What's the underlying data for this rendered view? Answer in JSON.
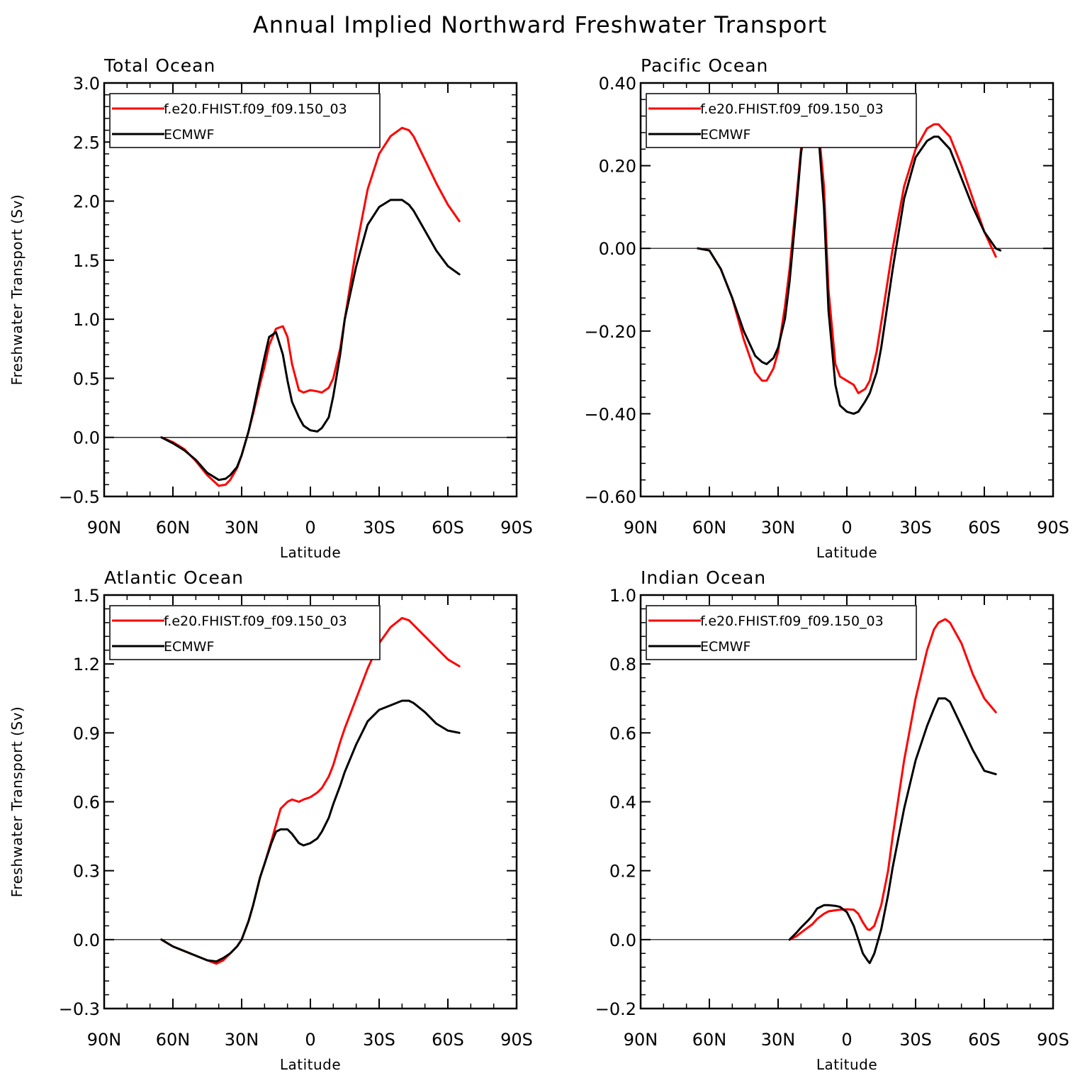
{
  "title": "Annual Implied Northward Freshwater Transport",
  "colors": {
    "model": "#ff0000",
    "obs": "#000000"
  },
  "legend": [
    "f.e20.FHIST.f09_f09.150_03",
    "ECMWF"
  ],
  "chart_data": [
    {
      "type": "line",
      "panel_title": "Total Ocean",
      "xlabel": "Latitude",
      "ylabel": "Freshwater Transport (Sv)",
      "xlim": [
        90,
        -90
      ],
      "x_ticks": [
        90,
        60,
        30,
        0,
        -30,
        -60,
        -90
      ],
      "x_tick_labels": [
        "90N",
        "60N",
        "30N",
        "0",
        "30S",
        "60S",
        "90S"
      ],
      "ylim": [
        -0.5,
        3.0
      ],
      "y_ticks": [
        -0.5,
        0.0,
        0.5,
        1.0,
        1.5,
        2.0,
        2.5,
        3.0
      ],
      "y_tick_labels": [
        "−0.5",
        "0.0",
        "0.5",
        "1.0",
        "1.5",
        "2.0",
        "2.5",
        "3.0"
      ],
      "legend_position": "top-left",
      "series": [
        {
          "name": "f.e20.FHIST.f09_f09.150_03",
          "color": "#ff0000",
          "x": [
            65,
            60,
            55,
            50,
            45,
            40,
            37,
            35,
            32,
            30,
            27,
            25,
            22,
            20,
            18,
            15,
            12,
            10,
            8,
            5,
            3,
            0,
            -3,
            -5,
            -8,
            -10,
            -13,
            -15,
            -20,
            -25,
            -30,
            -35,
            -40,
            -43,
            -45,
            -50,
            -55,
            -60,
            -65
          ],
          "y": [
            0,
            -0.04,
            -0.1,
            -0.2,
            -0.32,
            -0.41,
            -0.4,
            -0.36,
            -0.26,
            -0.15,
            0.05,
            0.2,
            0.45,
            0.6,
            0.78,
            0.92,
            0.94,
            0.85,
            0.62,
            0.4,
            0.38,
            0.4,
            0.39,
            0.38,
            0.42,
            0.5,
            0.75,
            1.0,
            1.6,
            2.1,
            2.4,
            2.55,
            2.62,
            2.6,
            2.55,
            2.35,
            2.15,
            1.97,
            1.83
          ]
        },
        {
          "name": "ECMWF",
          "color": "#000000",
          "x": [
            65,
            60,
            55,
            50,
            45,
            40,
            37,
            35,
            32,
            30,
            27,
            25,
            22,
            20,
            18,
            15,
            12,
            10,
            8,
            5,
            3,
            0,
            -3,
            -5,
            -8,
            -10,
            -13,
            -15,
            -20,
            -25,
            -30,
            -35,
            -40,
            -43,
            -45,
            -50,
            -55,
            -60,
            -65
          ],
          "y": [
            0,
            -0.05,
            -0.11,
            -0.19,
            -0.3,
            -0.36,
            -0.35,
            -0.32,
            -0.25,
            -0.15,
            0.05,
            0.22,
            0.5,
            0.68,
            0.85,
            0.89,
            0.7,
            0.48,
            0.3,
            0.17,
            0.1,
            0.06,
            0.05,
            0.08,
            0.17,
            0.35,
            0.7,
            1.0,
            1.45,
            1.8,
            1.95,
            2.01,
            2.01,
            1.97,
            1.92,
            1.75,
            1.58,
            1.45,
            1.38
          ]
        }
      ]
    },
    {
      "type": "line",
      "panel_title": "Pacific Ocean",
      "xlabel": "Latitude",
      "ylabel": "",
      "xlim": [
        90,
        -90
      ],
      "x_ticks": [
        90,
        60,
        30,
        0,
        -30,
        -60,
        -90
      ],
      "x_tick_labels": [
        "90N",
        "60N",
        "30N",
        "0",
        "30S",
        "60S",
        "90S"
      ],
      "ylim": [
        -0.6,
        0.4
      ],
      "y_ticks": [
        -0.6,
        -0.4,
        -0.2,
        0.0,
        0.2,
        0.4
      ],
      "y_tick_labels": [
        "−0.60",
        "−0.40",
        "−0.20",
        "0.00",
        "0.20",
        "0.40"
      ],
      "legend_position": "top-left",
      "series": [
        {
          "name": "f.e20.FHIST.f09_f09.150_03",
          "color": "#ff0000",
          "x": [
            65,
            60,
            55,
            50,
            45,
            40,
            37,
            35,
            32,
            30,
            27,
            25,
            22,
            20,
            17,
            15,
            13,
            10,
            8,
            5,
            3,
            0,
            -3,
            -5,
            -8,
            -10,
            -13,
            -15,
            -20,
            -25,
            -30,
            -35,
            -38,
            -40,
            -45,
            -50,
            -55,
            -60,
            -65
          ],
          "y": [
            0,
            -0.005,
            -0.05,
            -0.12,
            -0.22,
            -0.3,
            -0.32,
            -0.32,
            -0.29,
            -0.25,
            -0.14,
            -0.05,
            0.12,
            0.24,
            0.31,
            0.34,
            0.33,
            0.15,
            -0.1,
            -0.28,
            -0.31,
            -0.32,
            -0.33,
            -0.35,
            -0.34,
            -0.32,
            -0.25,
            -0.18,
            0.0,
            0.15,
            0.24,
            0.29,
            0.3,
            0.3,
            0.27,
            0.2,
            0.12,
            0.04,
            -0.02
          ]
        },
        {
          "name": "ECMWF",
          "color": "#000000",
          "x": [
            65,
            60,
            55,
            50,
            45,
            40,
            37,
            35,
            32,
            30,
            27,
            25,
            22,
            20,
            17,
            15,
            13,
            10,
            8,
            5,
            3,
            0,
            -3,
            -5,
            -8,
            -10,
            -13,
            -15,
            -20,
            -25,
            -30,
            -35,
            -38,
            -40,
            -45,
            -50,
            -55,
            -60,
            -65,
            -67
          ],
          "y": [
            0,
            -0.005,
            -0.05,
            -0.12,
            -0.2,
            -0.26,
            -0.275,
            -0.28,
            -0.265,
            -0.24,
            -0.17,
            -0.08,
            0.1,
            0.23,
            0.34,
            0.37,
            0.32,
            0.1,
            -0.15,
            -0.33,
            -0.38,
            -0.395,
            -0.4,
            -0.395,
            -0.37,
            -0.35,
            -0.3,
            -0.24,
            -0.05,
            0.12,
            0.22,
            0.26,
            0.27,
            0.27,
            0.24,
            0.17,
            0.1,
            0.04,
            0.0,
            -0.005
          ]
        }
      ]
    },
    {
      "type": "line",
      "panel_title": "Atlantic Ocean",
      "xlabel": "Latitude",
      "ylabel": "Freshwater Transport (Sv)",
      "xlim": [
        90,
        -90
      ],
      "x_ticks": [
        90,
        60,
        30,
        0,
        -30,
        -60,
        -90
      ],
      "x_tick_labels": [
        "90N",
        "60N",
        "30N",
        "0",
        "30S",
        "60S",
        "90S"
      ],
      "ylim": [
        -0.3,
        1.5
      ],
      "y_ticks": [
        -0.3,
        0.0,
        0.3,
        0.6,
        0.9,
        1.2,
        1.5
      ],
      "y_tick_labels": [
        "−0.3",
        "0.0",
        "0.3",
        "0.6",
        "0.9",
        "1.2",
        "1.5"
      ],
      "legend_position": "top-left",
      "series": [
        {
          "name": "f.e20.FHIST.f09_f09.150_03",
          "color": "#ff0000",
          "x": [
            65,
            60,
            55,
            50,
            45,
            41,
            38,
            35,
            32,
            30,
            27,
            25,
            22,
            20,
            17,
            15,
            13,
            10,
            8,
            5,
            3,
            0,
            -3,
            -5,
            -8,
            -10,
            -13,
            -15,
            -20,
            -25,
            -30,
            -35,
            -40,
            -43,
            -45,
            -50,
            -55,
            -60,
            -65
          ],
          "y": [
            0,
            -0.03,
            -0.05,
            -0.07,
            -0.09,
            -0.105,
            -0.09,
            -0.06,
            -0.03,
            0.0,
            0.08,
            0.15,
            0.27,
            0.33,
            0.43,
            0.5,
            0.57,
            0.6,
            0.61,
            0.6,
            0.61,
            0.62,
            0.64,
            0.66,
            0.71,
            0.76,
            0.86,
            0.92,
            1.05,
            1.18,
            1.29,
            1.36,
            1.4,
            1.39,
            1.37,
            1.32,
            1.27,
            1.22,
            1.19
          ]
        },
        {
          "name": "ECMWF",
          "color": "#000000",
          "x": [
            65,
            60,
            55,
            50,
            45,
            41,
            38,
            35,
            32,
            30,
            27,
            25,
            22,
            20,
            17,
            15,
            13,
            10,
            8,
            5,
            3,
            0,
            -3,
            -5,
            -8,
            -10,
            -13,
            -15,
            -20,
            -25,
            -30,
            -35,
            -40,
            -43,
            -45,
            -50,
            -55,
            -60,
            -65
          ],
          "y": [
            0,
            -0.03,
            -0.05,
            -0.07,
            -0.09,
            -0.095,
            -0.08,
            -0.06,
            -0.03,
            0.0,
            0.08,
            0.15,
            0.27,
            0.33,
            0.42,
            0.47,
            0.48,
            0.48,
            0.46,
            0.42,
            0.41,
            0.42,
            0.44,
            0.47,
            0.53,
            0.59,
            0.67,
            0.73,
            0.85,
            0.95,
            1.0,
            1.02,
            1.04,
            1.04,
            1.03,
            0.99,
            0.94,
            0.91,
            0.9
          ]
        }
      ]
    },
    {
      "type": "line",
      "panel_title": "Indian Ocean",
      "xlabel": "Latitude",
      "ylabel": "",
      "xlim": [
        90,
        -90
      ],
      "x_ticks": [
        90,
        60,
        30,
        0,
        -30,
        -60,
        -90
      ],
      "x_tick_labels": [
        "90N",
        "60N",
        "30N",
        "0",
        "30S",
        "60S",
        "90S"
      ],
      "ylim": [
        -0.2,
        1.0
      ],
      "y_ticks": [
        -0.2,
        0.0,
        0.2,
        0.4,
        0.6,
        0.8,
        1.0
      ],
      "y_tick_labels": [
        "−0.2",
        "0.0",
        "0.2",
        "0.4",
        "0.6",
        "0.8",
        "1.0"
      ],
      "legend_position": "top-left",
      "series": [
        {
          "name": "f.e20.FHIST.f09_f09.150_03",
          "color": "#ff0000",
          "x": [
            25,
            22,
            20,
            17,
            15,
            13,
            10,
            8,
            5,
            3,
            0,
            -3,
            -5,
            -7,
            -9,
            -10,
            -12,
            -15,
            -18,
            -20,
            -25,
            -30,
            -35,
            -38,
            -40,
            -43,
            -45,
            -50,
            -55,
            -60,
            -65
          ],
          "y": [
            0,
            0.01,
            0.02,
            0.035,
            0.045,
            0.06,
            0.075,
            0.082,
            0.085,
            0.087,
            0.088,
            0.087,
            0.075,
            0.05,
            0.03,
            0.028,
            0.04,
            0.1,
            0.2,
            0.3,
            0.52,
            0.7,
            0.84,
            0.9,
            0.92,
            0.93,
            0.92,
            0.86,
            0.77,
            0.7,
            0.66
          ]
        },
        {
          "name": "ECMWF",
          "color": "#000000",
          "x": [
            25,
            22,
            20,
            17,
            15,
            13,
            10,
            8,
            5,
            3,
            0,
            -3,
            -5,
            -7,
            -9,
            -10,
            -12,
            -15,
            -18,
            -20,
            -25,
            -30,
            -35,
            -38,
            -40,
            -43,
            -45,
            -50,
            -55,
            -60,
            -65
          ],
          "y": [
            0,
            0.02,
            0.035,
            0.055,
            0.07,
            0.09,
            0.1,
            0.1,
            0.098,
            0.095,
            0.08,
            0.04,
            0.0,
            -0.04,
            -0.06,
            -0.068,
            -0.04,
            0.03,
            0.13,
            0.21,
            0.38,
            0.52,
            0.62,
            0.67,
            0.7,
            0.7,
            0.69,
            0.62,
            0.55,
            0.49,
            0.48
          ]
        }
      ]
    }
  ]
}
